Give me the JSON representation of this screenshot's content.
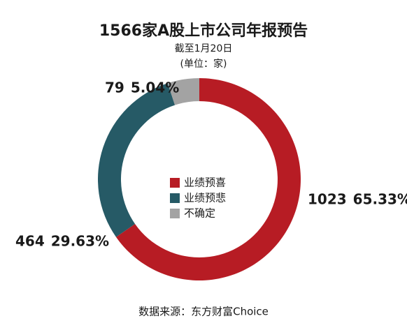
{
  "chart_data": {
    "type": "donut",
    "title": "1566家A股上市公司年报预告",
    "subtitle": "截至1月20日",
    "unit": "(单位：家)",
    "source": "数据来源：东方财富Choice",
    "categories": [
      "业绩预喜",
      "业绩预悲",
      "不确定"
    ],
    "values": [
      1023,
      464,
      79
    ],
    "percent_labels": [
      "65.33%",
      "29.63%",
      "5.04%"
    ],
    "colors": [
      "#b71c24",
      "#265a66",
      "#a3a3a3"
    ],
    "value_label_colors": [
      "#b71c24",
      "#265a66",
      "#1a1a1a"
    ],
    "percent_label_colors": [
      "#d9957a",
      "#8fa9b0",
      "#a3a3a3"
    ]
  }
}
